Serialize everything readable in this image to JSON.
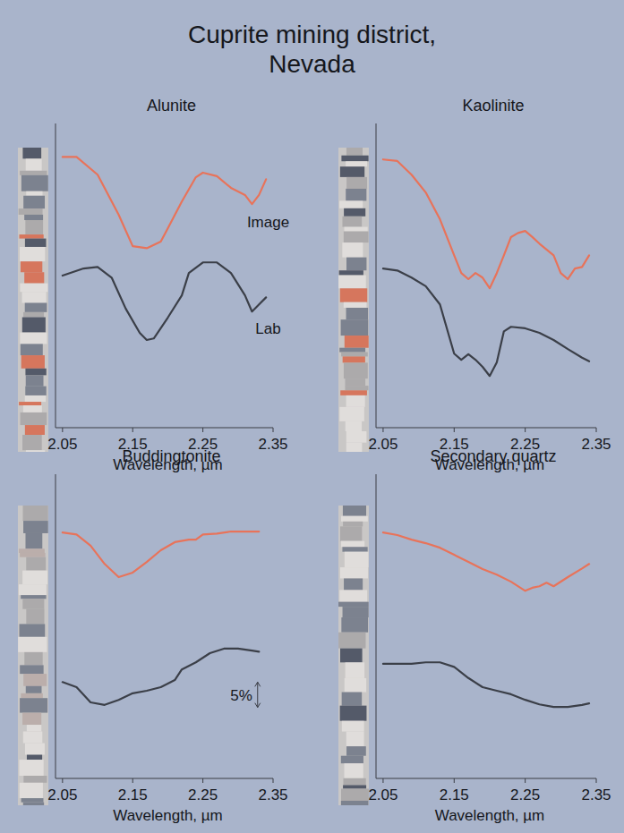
{
  "title": [
    "Cuprite mining district,",
    "Nevada"
  ],
  "chart_data": [
    {
      "type": "line",
      "title": "Alunite",
      "x_label": "Wavelength, µm",
      "xlim": [
        2.04,
        2.35
      ],
      "xticks": [
        2.05,
        2.15,
        2.25,
        2.35
      ],
      "ylim": [
        0,
        60
      ],
      "tick_labels": "x",
      "series": [
        {
          "name": "Image",
          "color": "#e8735a",
          "x": [
            2.05,
            2.07,
            2.1,
            2.13,
            2.15,
            2.17,
            2.19,
            2.2,
            2.22,
            2.24,
            2.25,
            2.27,
            2.29,
            2.31,
            2.32,
            2.33,
            2.34
          ],
          "values": [
            53.4,
            53.4,
            49.9,
            42.0,
            35.8,
            35.4,
            36.7,
            39.3,
            44.6,
            49.4,
            50.3,
            49.6,
            47.3,
            45.9,
            44.1,
            45.9,
            49.0
          ]
        },
        {
          "name": "Lab",
          "color": "#3b3f48",
          "x": [
            2.05,
            2.08,
            2.1,
            2.12,
            2.14,
            2.16,
            2.17,
            2.18,
            2.2,
            2.22,
            2.23,
            2.25,
            2.27,
            2.29,
            2.31,
            2.32,
            2.33,
            2.34
          ],
          "values": [
            30.0,
            31.4,
            31.7,
            29.6,
            23.5,
            18.7,
            17.3,
            17.6,
            21.7,
            26.1,
            30.5,
            32.6,
            32.6,
            30.5,
            26.1,
            22.9,
            24.3,
            25.7
          ]
        }
      ]
    },
    {
      "type": "line",
      "title": "Kaolinite",
      "x_label": "Wavelength, µm",
      "xlim": [
        2.04,
        2.35
      ],
      "xticks": [
        2.05,
        2.15,
        2.25,
        2.35
      ],
      "ylim": [
        0,
        60
      ],
      "tick_labels": "x",
      "series": [
        {
          "color": "#e8735a",
          "x": [
            2.05,
            2.07,
            2.09,
            2.11,
            2.13,
            2.15,
            2.16,
            2.17,
            2.18,
            2.19,
            2.2,
            2.21,
            2.22,
            2.23,
            2.24,
            2.25,
            2.26,
            2.27,
            2.29,
            2.3,
            2.31,
            2.32,
            2.33,
            2.34
          ],
          "values": [
            52.9,
            52.6,
            49.9,
            46.4,
            41.1,
            34.0,
            30.5,
            29.3,
            30.5,
            29.6,
            27.5,
            30.5,
            34.0,
            37.6,
            38.4,
            38.8,
            37.6,
            36.3,
            34.0,
            30.5,
            29.3,
            31.4,
            31.7,
            34.0
          ]
        },
        {
          "color": "#3b3f48",
          "x": [
            2.05,
            2.07,
            2.09,
            2.11,
            2.13,
            2.15,
            2.16,
            2.17,
            2.18,
            2.19,
            2.2,
            2.21,
            2.22,
            2.23,
            2.25,
            2.27,
            2.29,
            2.31,
            2.33,
            2.34
          ],
          "values": [
            31.4,
            31.0,
            29.6,
            27.9,
            24.3,
            14.6,
            13.4,
            14.5,
            13.4,
            12.0,
            10.2,
            12.9,
            19.0,
            19.9,
            19.6,
            18.7,
            17.3,
            15.5,
            13.8,
            13.1
          ]
        }
      ]
    },
    {
      "type": "line",
      "title": "Buddingtonite",
      "x_label": "Wavelength, µm",
      "xlim": [
        2.04,
        2.35
      ],
      "xticks": [
        2.05,
        2.15,
        2.25,
        2.35
      ],
      "ylim": [
        0,
        60
      ],
      "tick_labels": "x",
      "annotations": [
        {
          "text": "5%",
          "value": 5
        }
      ],
      "series": [
        {
          "color": "#e8735a",
          "x": [
            2.05,
            2.07,
            2.09,
            2.11,
            2.13,
            2.15,
            2.17,
            2.19,
            2.21,
            2.23,
            2.24,
            2.25,
            2.27,
            2.29,
            2.31,
            2.33
          ],
          "values": [
            48.5,
            48.1,
            45.9,
            42.3,
            39.7,
            40.6,
            42.7,
            45.0,
            46.6,
            47.1,
            47.1,
            48.1,
            48.3,
            48.7,
            48.7,
            48.7
          ]
        },
        {
          "color": "#3b3f48",
          "x": [
            2.05,
            2.07,
            2.09,
            2.11,
            2.13,
            2.15,
            2.17,
            2.19,
            2.21,
            2.22,
            2.24,
            2.26,
            2.28,
            2.3,
            2.32,
            2.33
          ],
          "values": [
            19.0,
            18.0,
            15.0,
            14.5,
            15.5,
            16.8,
            17.3,
            18.0,
            19.4,
            21.5,
            22.9,
            24.7,
            25.6,
            25.6,
            25.2,
            25.0
          ]
        }
      ]
    },
    {
      "type": "line",
      "title": "Secondary quartz",
      "x_label": "Wavelength, µm",
      "xlim": [
        2.04,
        2.35
      ],
      "xticks": [
        2.05,
        2.15,
        2.25,
        2.35
      ],
      "ylim": [
        0,
        60
      ],
      "tick_labels": "x",
      "series": [
        {
          "color": "#e8735a",
          "x": [
            2.05,
            2.07,
            2.09,
            2.11,
            2.13,
            2.15,
            2.17,
            2.19,
            2.21,
            2.23,
            2.25,
            2.26,
            2.27,
            2.28,
            2.29,
            2.31,
            2.33,
            2.34
          ],
          "values": [
            48.5,
            48.0,
            47.1,
            46.4,
            45.5,
            44.1,
            42.7,
            41.3,
            40.2,
            38.8,
            37.0,
            37.6,
            37.9,
            38.6,
            37.9,
            39.7,
            41.4,
            42.3
          ]
        },
        {
          "color": "#3b3f48",
          "x": [
            2.05,
            2.09,
            2.11,
            2.13,
            2.15,
            2.17,
            2.19,
            2.21,
            2.23,
            2.25,
            2.27,
            2.29,
            2.31,
            2.33,
            2.34
          ],
          "values": [
            22.6,
            22.6,
            22.9,
            22.9,
            22.0,
            19.8,
            18.0,
            17.3,
            16.6,
            15.5,
            14.6,
            14.1,
            14.1,
            14.5,
            14.8
          ]
        }
      ]
    }
  ]
}
